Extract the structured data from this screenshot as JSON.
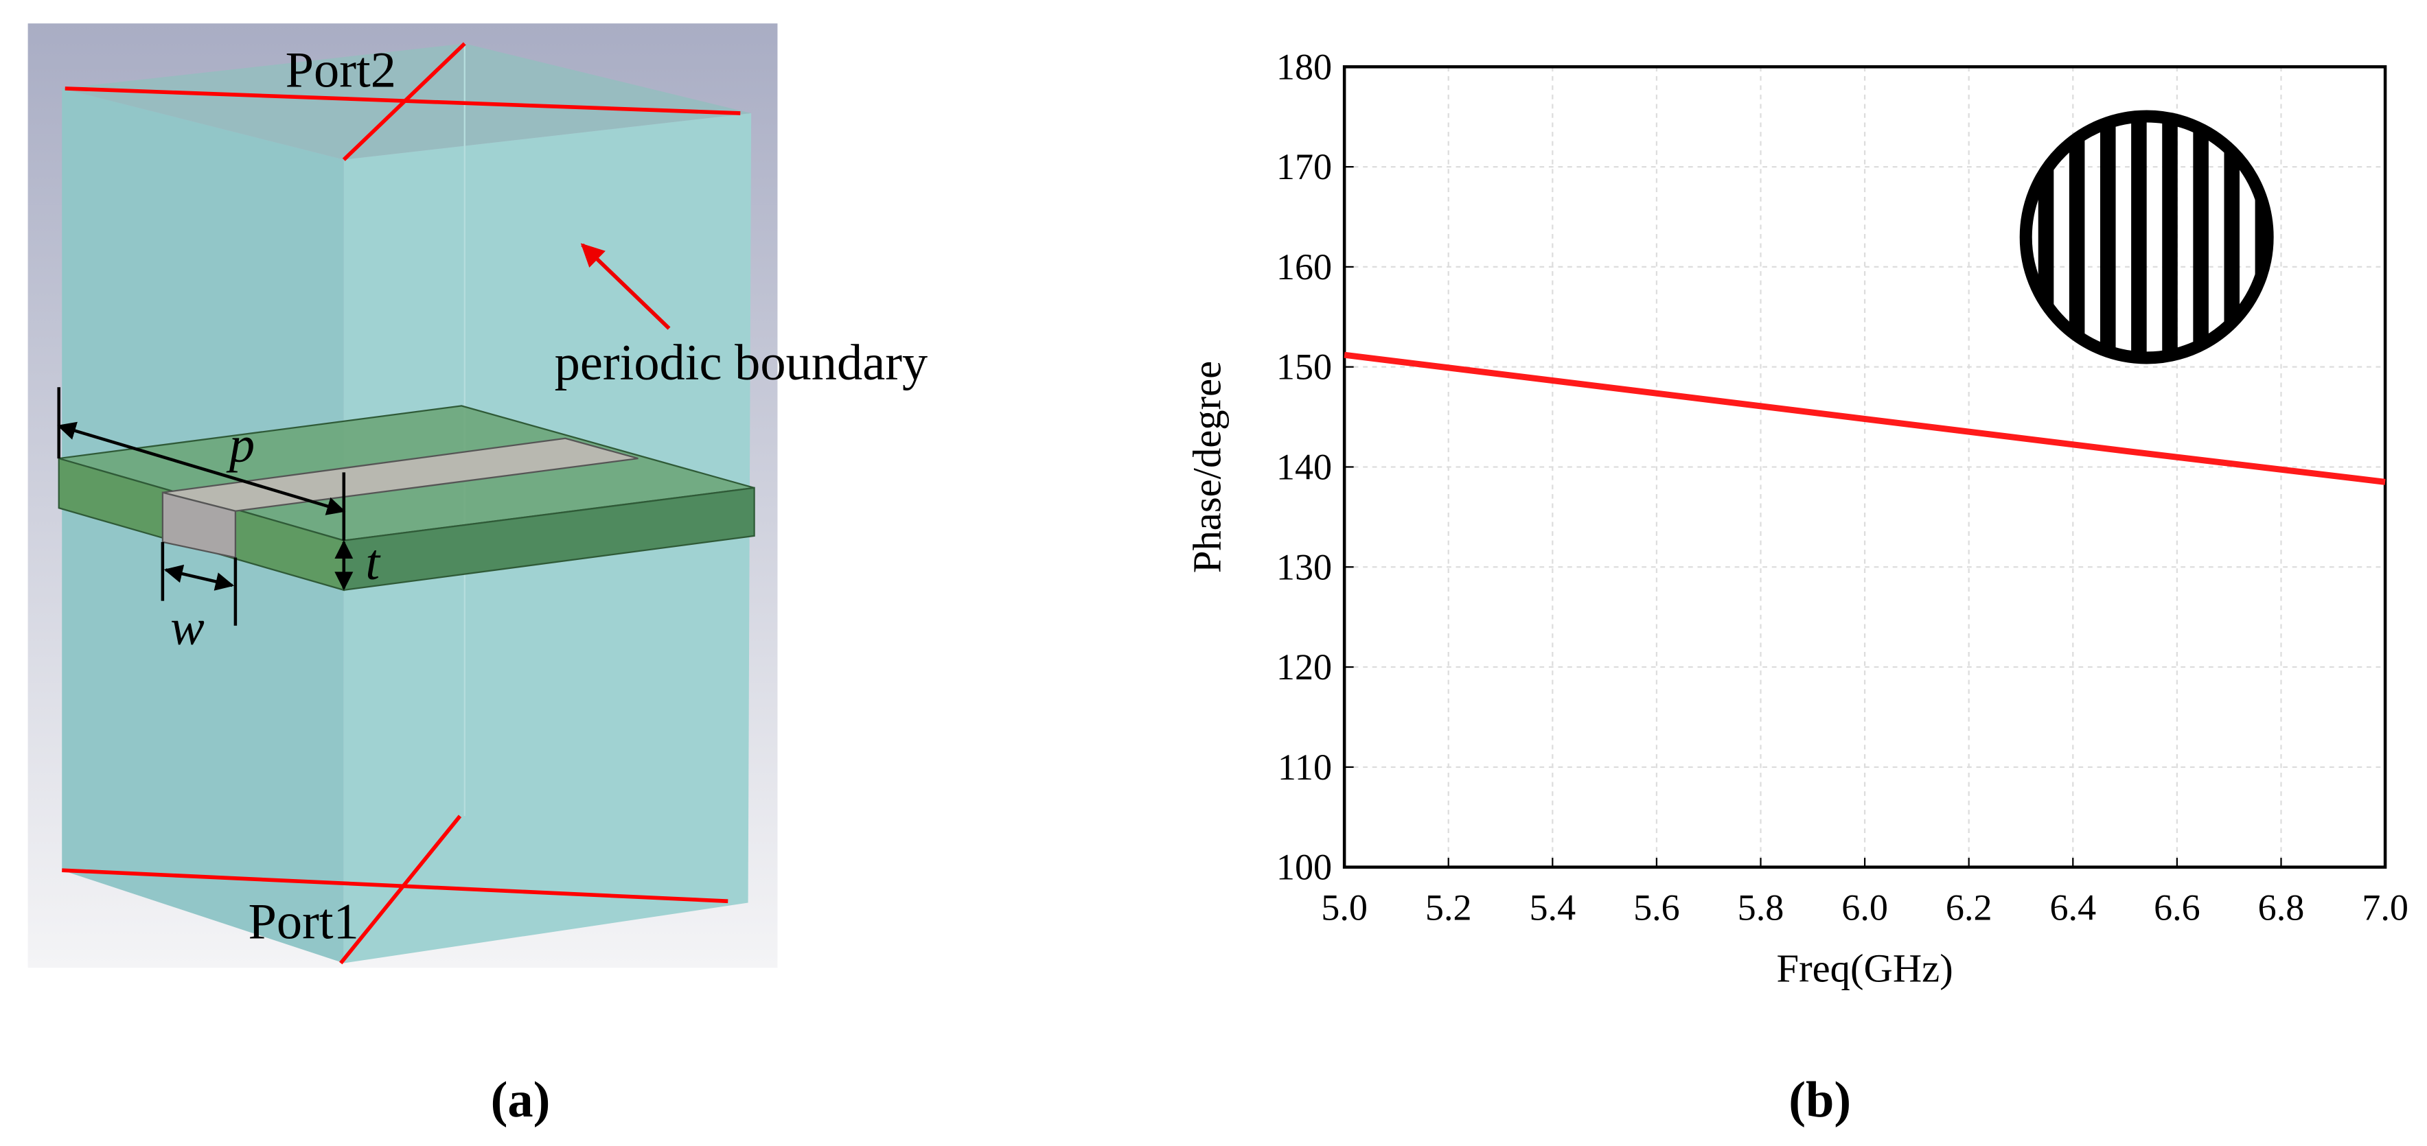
{
  "diagram": {
    "port2": "Port2",
    "port1": "Port1",
    "boundary": "periodic boundary",
    "p": "p",
    "t": "t",
    "w": "w"
  },
  "captions": [
    "(a)",
    "(b)"
  ],
  "chart_data": {
    "type": "line",
    "x_label": "Freq(GHz)",
    "y_label": "Phase/degree",
    "x": [
      5.0,
      5.5,
      6.0,
      6.5,
      7.0
    ],
    "series": [
      {
        "name": "Phase",
        "color": "#ff1a1a",
        "values": [
          151.2,
          148.0,
          144.8,
          141.6,
          138.5
        ]
      }
    ],
    "xlim": [
      5.0,
      7.0
    ],
    "xticks": [
      {
        "value": 5.0,
        "label": "5.0"
      },
      {
        "value": 5.2,
        "label": "5.2"
      },
      {
        "value": 5.4,
        "label": "5.4"
      },
      {
        "value": 5.6,
        "label": "5.6"
      },
      {
        "value": 5.8,
        "label": "5.8"
      },
      {
        "value": 6.0,
        "label": "6.0"
      },
      {
        "value": 6.2,
        "label": "6.2"
      },
      {
        "value": 6.4,
        "label": "6.4"
      },
      {
        "value": 6.6,
        "label": "6.6"
      },
      {
        "value": 6.8,
        "label": "6.8"
      },
      {
        "value": 7.0,
        "label": "7.0"
      }
    ],
    "ylim": [
      100,
      180
    ],
    "yticks": [
      100,
      110,
      120,
      130,
      140,
      150,
      160,
      170,
      180
    ],
    "grid": true
  }
}
